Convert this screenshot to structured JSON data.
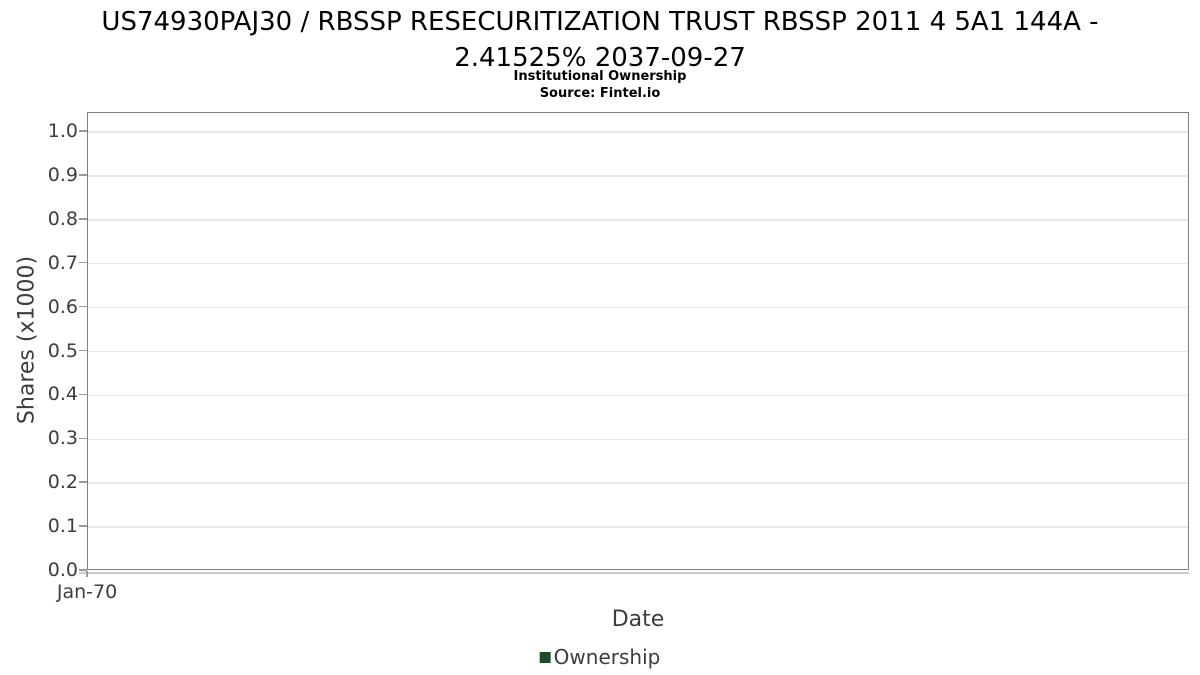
{
  "title": {
    "line1": "US74930PAJ30 / RBSSP RESECURITIZATION TRUST RBSSP 2011 4 5A1 144A -",
    "line2": "2.41525% 2037-09-27",
    "subtitle": "Institutional Ownership",
    "source": "Source: Fintel.io"
  },
  "y_axis": {
    "label": "Shares (x1000)",
    "ticks": [
      "1.0",
      "0.9",
      "0.8",
      "0.7",
      "0.6",
      "0.5",
      "0.4",
      "0.3",
      "0.2",
      "0.1",
      "0.0"
    ]
  },
  "x_axis": {
    "label": "Date",
    "ticks": [
      "Jan-70"
    ]
  },
  "legend": {
    "items": [
      {
        "label": "Ownership",
        "color": "#1d4d2b"
      }
    ]
  },
  "colors": {
    "background": "#ffffff",
    "plot_border": "#7f7f7f",
    "gridline": "#e8e8e8",
    "tick": "#9a9a9a",
    "axis_text": "#3d3d3d",
    "title_text": "#000000",
    "series_ownership": "#1d4d2b"
  },
  "chart_data": {
    "type": "line",
    "title": "US74930PAJ30 / RBSSP RESECURITIZATION TRUST RBSSP 2011 4 5A1 144A - 2.41525% 2037-09-27",
    "subtitle": "Institutional Ownership",
    "source": "Source: Fintel.io",
    "xlabel": "Date",
    "ylabel": "Shares (x1000)",
    "x_tick_labels": [
      "Jan-70"
    ],
    "y_ticks": [
      0.0,
      0.1,
      0.2,
      0.3,
      0.4,
      0.5,
      0.6,
      0.7,
      0.8,
      0.9,
      1.0
    ],
    "ylim": [
      0.0,
      1.043
    ],
    "grid": "horizontal-only",
    "legend_position": "bottom-center",
    "series": [
      {
        "name": "Ownership",
        "color": "#1d4d2b",
        "x": [],
        "values": []
      }
    ]
  }
}
